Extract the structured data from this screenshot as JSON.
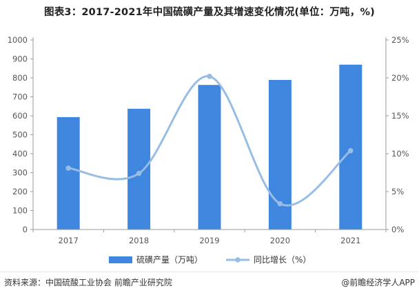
{
  "title": "图表3：2017-2021年中国硫磺产量及其增速变化情况(单位：万吨，%)",
  "footer": {
    "source": "资料来源：中国硫酸工业协会 前瞻产业研究院",
    "brand": "@前瞻经济学人APP"
  },
  "colors": {
    "bar": "#3f86df",
    "line": "#97bde6",
    "axis_text": "#555555",
    "axis_line": "#999999"
  },
  "chart_data": {
    "type": "bar",
    "title": "图表3：2017-2021年中国硫磺产量及其增速变化情况(单位：万吨，%)",
    "categories": [
      "2017",
      "2018",
      "2019",
      "2020",
      "2021"
    ],
    "series": [
      {
        "name": "硫磺产量（万吨）",
        "type": "bar",
        "axis": "left",
        "values": [
          593,
          637,
          763,
          789,
          870
        ]
      },
      {
        "name": "同比增长（%）",
        "type": "line",
        "axis": "right",
        "smooth": true,
        "values": [
          8.1,
          7.4,
          20.2,
          3.4,
          10.4
        ]
      }
    ],
    "left_axis": {
      "min": 0,
      "max": 1000,
      "step": 100,
      "tick_labels": [
        "0",
        "100",
        "200",
        "300",
        "400",
        "500",
        "600",
        "700",
        "800",
        "900",
        "1000"
      ]
    },
    "right_axis": {
      "min": 0,
      "max": 25,
      "step": 5,
      "tick_labels": [
        "0%",
        "5%",
        "10%",
        "15%",
        "20%",
        "25%"
      ]
    },
    "legend": {
      "position": "bottom-center",
      "labels": [
        "硫磺产量（万吨）",
        "同比增长（%）"
      ]
    },
    "grid": false
  }
}
